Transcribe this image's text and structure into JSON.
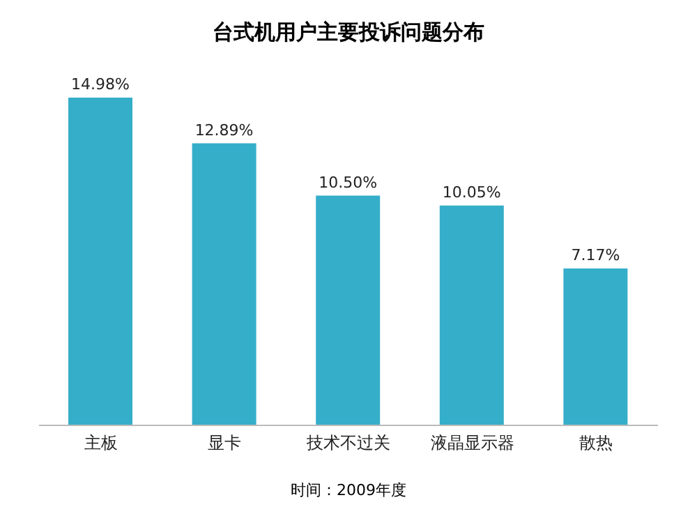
{
  "chart_data": {
    "type": "bar",
    "title": "台式机用户主要投诉问题分布",
    "categories": [
      "主板",
      "显卡",
      "技术不过关",
      "液晶显示器",
      "散热"
    ],
    "values": [
      14.98,
      12.89,
      10.5,
      10.05,
      7.17
    ],
    "value_labels": [
      "14.98%",
      "12.89%",
      "10.50%",
      "10.05%",
      "7.17%"
    ],
    "color": "#35aec9",
    "grid": false,
    "legend": false,
    "annotations": [
      "时间：2009年度"
    ]
  }
}
